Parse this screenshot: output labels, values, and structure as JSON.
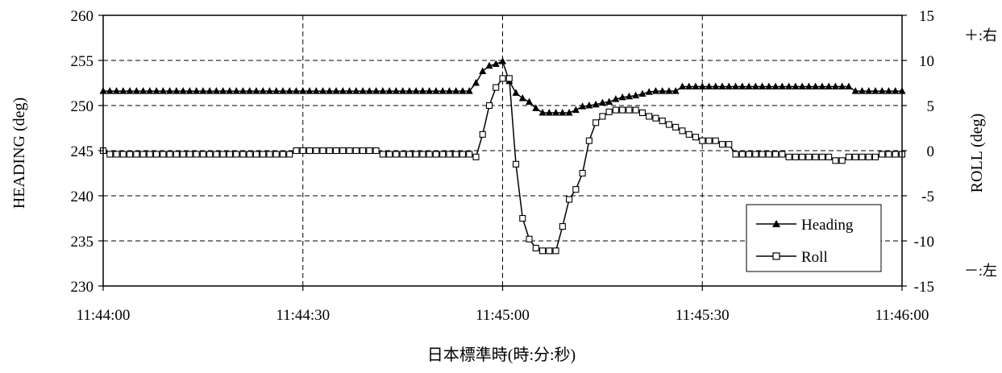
{
  "chart_data": {
    "type": "line",
    "xlabel": "日本標準時(時:分:秒)",
    "ylabel": "HEADING (deg)",
    "y2label": "ROLL (deg)",
    "xlim_seconds": [
      0,
      120
    ],
    "x_ticks": [
      {
        "t": 0,
        "label": "11:44:00"
      },
      {
        "t": 30,
        "label": "11:44:30"
      },
      {
        "t": 60,
        "label": "11:45:00"
      },
      {
        "t": 90,
        "label": "11:45:30"
      },
      {
        "t": 120,
        "label": "11:46:00"
      }
    ],
    "ylim": [
      230,
      260
    ],
    "y_ticks": [
      230,
      235,
      240,
      245,
      250,
      255,
      260
    ],
    "y2lim": [
      -15,
      15
    ],
    "y2_ticks": [
      -15,
      -10,
      -5,
      0,
      5,
      10,
      15
    ],
    "grid": true,
    "legend_position": "bottom-right",
    "annotations": {
      "top_right": "＋:右",
      "bottom_right": "－:左"
    },
    "series": [
      {
        "name": "Heading",
        "axis": "left",
        "marker": "filled-triangle",
        "x": [
          0,
          1,
          2,
          3,
          4,
          5,
          6,
          7,
          8,
          9,
          10,
          11,
          12,
          13,
          14,
          15,
          16,
          17,
          18,
          19,
          20,
          21,
          22,
          23,
          24,
          25,
          26,
          27,
          28,
          29,
          30,
          31,
          32,
          33,
          34,
          35,
          36,
          37,
          38,
          39,
          40,
          41,
          42,
          43,
          44,
          45,
          46,
          47,
          48,
          49,
          50,
          51,
          52,
          53,
          54,
          55,
          56,
          57,
          58,
          59,
          60,
          61,
          62,
          63,
          64,
          65,
          66,
          67,
          68,
          69,
          70,
          71,
          72,
          73,
          74,
          75,
          76,
          77,
          78,
          79,
          80,
          81,
          82,
          83,
          84,
          85,
          86,
          87,
          88,
          89,
          90,
          91,
          92,
          93,
          94,
          95,
          96,
          97,
          98,
          99,
          100,
          101,
          102,
          103,
          104,
          105,
          106,
          107,
          108,
          109,
          110,
          111,
          112,
          113,
          114,
          115,
          116,
          117,
          118,
          119,
          120
        ],
        "values": [
          251.6,
          251.6,
          251.6,
          251.6,
          251.6,
          251.6,
          251.6,
          251.6,
          251.6,
          251.6,
          251.6,
          251.6,
          251.6,
          251.6,
          251.6,
          251.6,
          251.6,
          251.6,
          251.6,
          251.6,
          251.6,
          251.6,
          251.6,
          251.6,
          251.6,
          251.6,
          251.6,
          251.6,
          251.6,
          251.6,
          251.6,
          251.6,
          251.6,
          251.6,
          251.6,
          251.6,
          251.6,
          251.6,
          251.6,
          251.6,
          251.6,
          251.6,
          251.6,
          251.6,
          251.6,
          251.6,
          251.6,
          251.6,
          251.6,
          251.6,
          251.6,
          251.6,
          251.6,
          251.6,
          251.6,
          251.6,
          252.5,
          253.8,
          254.4,
          254.6,
          254.9,
          252.7,
          251.4,
          250.8,
          250.4,
          249.7,
          249.2,
          249.2,
          249.2,
          249.2,
          249.2,
          249.5,
          249.9,
          250.0,
          250.1,
          250.3,
          250.4,
          250.7,
          250.9,
          251.0,
          251.1,
          251.3,
          251.5,
          251.6,
          251.6,
          251.6,
          251.6,
          252.1,
          252.1,
          252.1,
          252.1,
          252.1,
          252.1,
          252.1,
          252.1,
          252.1,
          252.1,
          252.1,
          252.1,
          252.1,
          252.1,
          252.1,
          252.1,
          252.1,
          252.1,
          252.1,
          252.1,
          252.1,
          252.1,
          252.1,
          252.1,
          252.1,
          252.1,
          251.6,
          251.6,
          251.6,
          251.6,
          251.6,
          251.6,
          251.6,
          251.6
        ]
      },
      {
        "name": "Roll",
        "axis": "right",
        "marker": "open-square",
        "x": [
          0,
          1,
          2,
          3,
          4,
          5,
          6,
          7,
          8,
          9,
          10,
          11,
          12,
          13,
          14,
          15,
          16,
          17,
          18,
          19,
          20,
          21,
          22,
          23,
          24,
          25,
          26,
          27,
          28,
          29,
          30,
          31,
          32,
          33,
          34,
          35,
          36,
          37,
          38,
          39,
          40,
          41,
          42,
          43,
          44,
          45,
          46,
          47,
          48,
          49,
          50,
          51,
          52,
          53,
          54,
          55,
          56,
          57,
          58,
          59,
          60,
          61,
          62,
          63,
          64,
          65,
          66,
          67,
          68,
          69,
          70,
          71,
          72,
          73,
          74,
          75,
          76,
          77,
          78,
          79,
          80,
          81,
          82,
          83,
          84,
          85,
          86,
          87,
          88,
          89,
          90,
          91,
          92,
          93,
          94,
          95,
          96,
          97,
          98,
          99,
          100,
          101,
          102,
          103,
          104,
          105,
          106,
          107,
          108,
          109,
          110,
          111,
          112,
          113,
          114,
          115,
          116,
          117,
          118,
          119,
          120
        ],
        "values": [
          0.0,
          -0.4,
          -0.4,
          -0.4,
          -0.4,
          -0.4,
          -0.4,
          -0.4,
          -0.4,
          -0.4,
          -0.4,
          -0.4,
          -0.4,
          -0.4,
          -0.4,
          -0.4,
          -0.4,
          -0.4,
          -0.4,
          -0.4,
          -0.4,
          -0.4,
          -0.4,
          -0.4,
          -0.4,
          -0.4,
          -0.4,
          -0.4,
          -0.4,
          0.0,
          0.0,
          0.0,
          0.0,
          0.0,
          0.0,
          0.0,
          0.0,
          0.0,
          0.0,
          0.0,
          0.0,
          0.0,
          -0.4,
          -0.4,
          -0.4,
          -0.4,
          -0.4,
          -0.4,
          -0.4,
          -0.4,
          -0.4,
          -0.4,
          -0.4,
          -0.4,
          -0.4,
          -0.4,
          -0.7,
          1.8,
          5.0,
          7.0,
          8.0,
          8.0,
          -1.5,
          -7.5,
          -9.8,
          -10.8,
          -11.1,
          -11.1,
          -11.1,
          -8.4,
          -5.4,
          -4.3,
          -2.5,
          1.1,
          3.1,
          3.8,
          4.3,
          4.5,
          4.5,
          4.5,
          4.5,
          4.2,
          3.8,
          3.6,
          3.3,
          2.9,
          2.6,
          2.2,
          1.8,
          1.5,
          1.1,
          1.1,
          1.1,
          0.7,
          0.7,
          -0.4,
          -0.4,
          -0.4,
          -0.4,
          -0.4,
          -0.4,
          -0.4,
          -0.4,
          -0.7,
          -0.7,
          -0.7,
          -0.7,
          -0.7,
          -0.7,
          -0.7,
          -1.1,
          -1.1,
          -0.7,
          -0.7,
          -0.7,
          -0.7,
          -0.7,
          -0.4,
          -0.4,
          -0.4,
          -0.4
        ]
      }
    ]
  }
}
